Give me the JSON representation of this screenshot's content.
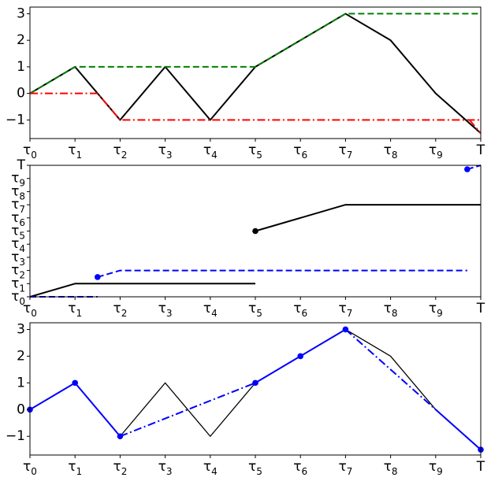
{
  "chart_data": [
    {
      "type": "line",
      "x_ticks": [
        "τ0",
        "τ1",
        "τ2",
        "τ3",
        "τ4",
        "τ5",
        "τ6",
        "τ7",
        "τ8",
        "τ9",
        "T"
      ],
      "ylim": [
        -1.7,
        3.25
      ],
      "y_ticks": [
        "−1",
        "0",
        "1",
        "2",
        "3"
      ],
      "y_tick_values": [
        -1,
        0,
        1,
        2,
        3
      ],
      "grid": false,
      "series": [
        {
          "color": "#000000",
          "style": "solid",
          "x": [
            0,
            1,
            2,
            3,
            4,
            5,
            6,
            7,
            8,
            9,
            10
          ],
          "y": [
            0,
            1,
            -1,
            1,
            -1,
            1,
            2,
            3,
            2,
            0,
            -1.5
          ]
        },
        {
          "color": "#008000",
          "style": "dashed",
          "x": [
            0,
            1,
            5,
            7,
            10
          ],
          "y": [
            0,
            1,
            1,
            3,
            3
          ]
        },
        {
          "color": "#ff0000",
          "style": "dashdot",
          "x": [
            0,
            1.5,
            2,
            10
          ],
          "y": [
            0,
            0,
            -1,
            -1
          ]
        },
        {
          "color": "#ff0000",
          "style": "dashdot",
          "x": [
            9.75,
            10
          ],
          "y": [
            -1,
            -1.5
          ]
        }
      ]
    },
    {
      "type": "line",
      "x_ticks": [
        "τ0",
        "τ1",
        "τ2",
        "τ3",
        "τ4",
        "τ5",
        "τ6",
        "τ7",
        "τ8",
        "τ9",
        "T"
      ],
      "y_ticks": [
        "τ0",
        "τ1",
        "τ2",
        "τ3",
        "τ4",
        "τ5",
        "τ6",
        "τ7",
        "τ8",
        "τ9",
        "T"
      ],
      "y_tick_values": [
        0,
        1,
        2,
        3,
        4,
        5,
        6,
        7,
        8,
        9,
        10
      ],
      "ylim": [
        0,
        10
      ],
      "grid": false,
      "series": [
        {
          "color": "#000000",
          "style": "solid",
          "x": [
            0,
            1,
            5
          ],
          "y": [
            0,
            1,
            1
          ]
        },
        {
          "color": "#000000",
          "style": "solid",
          "x": [
            5,
            7,
            10
          ],
          "y": [
            5,
            7,
            7
          ]
        },
        {
          "color": "#0000ff",
          "style": "dashed",
          "x": [
            0,
            1.5
          ],
          "y": [
            0,
            0
          ]
        },
        {
          "color": "#0000ff",
          "style": "dashed",
          "x": [
            1.5,
            2,
            9.7
          ],
          "y": [
            1.5,
            2,
            2
          ]
        },
        {
          "color": "#0000ff",
          "style": "dashed",
          "x": [
            9.7,
            10
          ],
          "y": [
            9.7,
            10
          ]
        }
      ],
      "markers": [
        {
          "color": "#000000",
          "x": 5,
          "y": 5
        },
        {
          "color": "#0000ff",
          "x": 1.5,
          "y": 1.5
        },
        {
          "color": "#0000ff",
          "x": 9.7,
          "y": 9.7
        }
      ]
    },
    {
      "type": "line",
      "x_ticks": [
        "τ0",
        "τ1",
        "τ2",
        "τ3",
        "τ4",
        "τ5",
        "τ6",
        "τ7",
        "τ8",
        "τ9",
        "T"
      ],
      "ylim": [
        -1.7,
        3.25
      ],
      "y_ticks": [
        "−1",
        "0",
        "1",
        "2",
        "3"
      ],
      "y_tick_values": [
        -1,
        0,
        1,
        2,
        3
      ],
      "grid": false,
      "series": [
        {
          "color": "#000000",
          "style": "solid",
          "width": 1.3,
          "x": [
            0,
            1,
            2,
            3,
            4,
            5,
            6,
            7,
            8,
            9,
            10
          ],
          "y": [
            0,
            1,
            -1,
            1,
            -1,
            1,
            2,
            3,
            2,
            0,
            -1.5
          ]
        },
        {
          "color": "#0000ff",
          "style": "solid",
          "x": [
            0,
            1,
            2
          ],
          "y": [
            0,
            1,
            -1
          ]
        },
        {
          "color": "#0000ff",
          "style": "dashdot",
          "x": [
            2,
            5
          ],
          "y": [
            -1,
            1
          ]
        },
        {
          "color": "#0000ff",
          "style": "solid",
          "x": [
            5,
            6,
            7
          ],
          "y": [
            1,
            2,
            3
          ]
        },
        {
          "color": "#0000ff",
          "style": "dashdot",
          "x": [
            7,
            9
          ],
          "y": [
            3,
            0
          ]
        },
        {
          "color": "#0000ff",
          "style": "solid",
          "x": [
            9,
            10
          ],
          "y": [
            0,
            -1.5
          ]
        }
      ],
      "markers": [
        {
          "color": "#0000ff",
          "x": 0,
          "y": 0
        },
        {
          "color": "#0000ff",
          "x": 1,
          "y": 1
        },
        {
          "color": "#0000ff",
          "x": 2,
          "y": -1
        },
        {
          "color": "#0000ff",
          "x": 5,
          "y": 1
        },
        {
          "color": "#0000ff",
          "x": 6,
          "y": 2
        },
        {
          "color": "#0000ff",
          "x": 7,
          "y": 3
        },
        {
          "color": "#0000ff",
          "x": 10,
          "y": -1.5
        }
      ]
    }
  ]
}
